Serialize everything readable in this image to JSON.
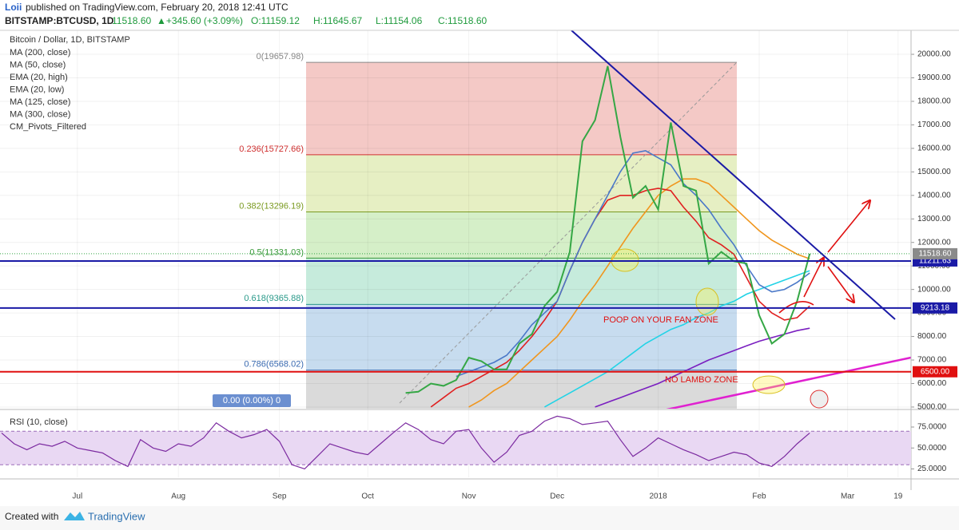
{
  "header": {
    "author": "Loii",
    "published": "published on TradingView.com, February 20, 2018 12:41 UTC",
    "symbol": "BITSTAMP:BTCUSD, 1D",
    "last": "11518.60",
    "change": "▲+345.60 (+3.09%)",
    "open": "O:11159.12",
    "high": "H:11645.67",
    "low": "L:11154.06",
    "close": "C:11518.60"
  },
  "footer": {
    "created": "Created with",
    "brand": "TradingView"
  },
  "chart_data": [
    {
      "type": "line",
      "title": "Bitcoin / Dollar, 1D, BITSTAMP",
      "indicators": [
        "MA (200, close)",
        "MA (50, close)",
        "EMA (20, high)",
        "EMA (20, low)",
        "MA (125, close)",
        "MA (300, close)",
        "CM_Pivots_Filtered"
      ],
      "ylim": [
        4930,
        21020
      ],
      "yticks": [
        {
          "value": 5000,
          "label": "5000.00"
        },
        {
          "value": 6000,
          "label": "6000.00"
        },
        {
          "value": 7000,
          "label": "7000.00"
        },
        {
          "value": 8000,
          "label": "8000.00"
        },
        {
          "value": 9000,
          "label": "9000.00"
        },
        {
          "value": 10000,
          "label": "10000.00"
        },
        {
          "value": 11000,
          "label": "11000.00"
        },
        {
          "value": 12000,
          "label": "12000.00"
        },
        {
          "value": 13000,
          "label": "13000.00"
        },
        {
          "value": 14000,
          "label": "14000.00"
        },
        {
          "value": 15000,
          "label": "15000.00"
        },
        {
          "value": 16000,
          "label": "16000.00"
        },
        {
          "value": 17000,
          "label": "17000.00"
        },
        {
          "value": 18000,
          "label": "18000.00"
        },
        {
          "value": 19000,
          "label": "19000.00"
        },
        {
          "value": 20000,
          "label": "20000.00"
        }
      ],
      "grid": true,
      "series": [
        {
          "color": "#35a745",
          "values": [
            null,
            null,
            null,
            null,
            null,
            null,
            null,
            null,
            null,
            null,
            null,
            null,
            null,
            null,
            null,
            null,
            null,
            null,
            null,
            null,
            null,
            null,
            null,
            null,
            null,
            null,
            null,
            null,
            null,
            null,
            null,
            null,
            5600,
            5650,
            6000,
            5900,
            6150,
            7100,
            6950,
            6600,
            6600,
            7700,
            8100,
            9300,
            9900,
            11600,
            16300,
            17200,
            19500,
            16500,
            13900,
            14400,
            13400,
            17100,
            14400,
            14200,
            11100,
            11600,
            11200,
            11100,
            8900,
            7700,
            8100,
            9500,
            11518.6,
            null,
            null,
            null,
            null,
            null,
            null,
            null,
            null
          ]
        },
        {
          "color": "#4a78c8",
          "values": [
            null,
            null,
            null,
            null,
            null,
            null,
            null,
            null,
            null,
            null,
            null,
            null,
            null,
            null,
            null,
            null,
            null,
            null,
            null,
            null,
            null,
            null,
            null,
            null,
            null,
            null,
            null,
            null,
            null,
            null,
            null,
            null,
            null,
            null,
            null,
            null,
            6300,
            6500,
            6700,
            6900,
            7200,
            7800,
            8500,
            9000,
            9500,
            10800,
            12000,
            13000,
            14000,
            15000,
            15800,
            15900,
            15600,
            15300,
            14500,
            14000,
            13400,
            12600,
            11900,
            11000,
            10200,
            9900,
            10000,
            10300,
            10700,
            null,
            null,
            null,
            null,
            null,
            null,
            null,
            null
          ]
        },
        {
          "color": "#e02020",
          "values": [
            null,
            null,
            null,
            null,
            null,
            null,
            null,
            null,
            null,
            null,
            null,
            null,
            null,
            null,
            null,
            null,
            null,
            null,
            null,
            null,
            null,
            null,
            null,
            null,
            null,
            null,
            null,
            null,
            null,
            null,
            null,
            null,
            null,
            null,
            5000,
            5400,
            5800,
            6000,
            6300,
            6600,
            6900,
            7400,
            8000,
            8700,
            9500,
            10800,
            12000,
            13000,
            13800,
            14000,
            14000,
            14200,
            14300,
            14200,
            13500,
            12900,
            12200,
            11900,
            11500,
            10500,
            9500,
            9000,
            8700,
            8800,
            9300,
            null,
            null,
            null,
            null,
            null,
            null,
            null,
            null
          ]
        },
        {
          "color": "#f0961e",
          "values": [
            null,
            null,
            null,
            null,
            null,
            null,
            null,
            null,
            null,
            null,
            null,
            null,
            null,
            null,
            null,
            null,
            null,
            null,
            null,
            null,
            null,
            null,
            null,
            null,
            null,
            null,
            null,
            null,
            null,
            null,
            null,
            null,
            null,
            null,
            null,
            null,
            null,
            5000,
            5300,
            5700,
            6000,
            6500,
            7000,
            7500,
            8000,
            8700,
            9500,
            10200,
            11000,
            11800,
            12600,
            13300,
            14000,
            14400,
            14700,
            14700,
            14500,
            14000,
            13500,
            13000,
            12500,
            12100,
            11800,
            11500,
            11300,
            null,
            null,
            null,
            null,
            null,
            null,
            null,
            null
          ]
        },
        {
          "color": "#22d3e6",
          "values": [
            null,
            null,
            null,
            null,
            null,
            null,
            null,
            null,
            null,
            null,
            null,
            null,
            null,
            null,
            null,
            null,
            null,
            null,
            null,
            null,
            null,
            null,
            null,
            null,
            null,
            null,
            null,
            null,
            null,
            null,
            null,
            null,
            null,
            null,
            null,
            null,
            null,
            null,
            null,
            null,
            null,
            null,
            null,
            5000,
            5300,
            5600,
            5900,
            6200,
            6500,
            6900,
            7300,
            7700,
            8000,
            8300,
            8500,
            8800,
            9000,
            9300,
            9500,
            9800,
            10000,
            10200,
            10400,
            10600,
            10800,
            null,
            null,
            null,
            null,
            null,
            null,
            null,
            null
          ]
        },
        {
          "color": "#7a1fc0",
          "values": [
            null,
            null,
            null,
            null,
            null,
            null,
            null,
            null,
            null,
            null,
            null,
            null,
            null,
            null,
            null,
            null,
            null,
            null,
            null,
            null,
            null,
            null,
            null,
            null,
            null,
            null,
            null,
            null,
            null,
            null,
            null,
            null,
            null,
            null,
            null,
            null,
            null,
            null,
            null,
            null,
            null,
            null,
            null,
            null,
            null,
            null,
            null,
            5000,
            5200,
            5400,
            5600,
            5800,
            6000,
            6250,
            6500,
            6750,
            7000,
            7200,
            7400,
            7600,
            7800,
            7950,
            8100,
            8250,
            8350,
            null,
            null,
            null,
            null,
            null,
            null,
            null,
            null
          ]
        }
      ],
      "fib_levels": [
        {
          "value": 19657.98,
          "label": "0(19657.98)",
          "color": "#f4c9c6",
          "text_color": "#888888"
        },
        {
          "value": 15727.66,
          "label": "0.236(15727.66)",
          "color": "#e6efc3",
          "text_color": "#d03030"
        },
        {
          "value": 13296.19,
          "label": "0.382(13296.19)",
          "color": "#d5efc8",
          "text_color": "#7a9a20"
        },
        {
          "value": 11331.03,
          "label": "0.5(11331.03)",
          "color": "#c6ebdc",
          "text_color": "#3a9a3a"
        },
        {
          "value": 9365.88,
          "label": "0.618(9365.88)",
          "color": "#c7dcef",
          "text_color": "#2a9a8a"
        },
        {
          "value": 6568.02,
          "label": "0.786(6568.02)",
          "color": "#dadada",
          "text_color": "#3a6ab0"
        }
      ],
      "levels": [
        {
          "value": 11211.63,
          "label": "11211.63",
          "color": "#1a1aa6"
        },
        {
          "value": 9213.18,
          "label": "9213.18",
          "color": "#1a1aa6"
        },
        {
          "value": 6500,
          "label": "6500.00",
          "color": "#e01010"
        }
      ],
      "last_price": {
        "value": 11518.6,
        "label": "11518.60",
        "color": "#8a8a8a"
      },
      "annotations": [
        "POOP ON YOUR FAN ZONE",
        "NO LAMBO ZONE"
      ],
      "marker": "0.00 (0.00%) 0"
    },
    {
      "type": "line",
      "title": "RSI (10, close)",
      "categories": [
        null,
        null,
        null,
        null,
        null,
        null,
        "Jul",
        null,
        null,
        null,
        null,
        null,
        null,
        null,
        "Aug",
        null,
        null,
        null,
        null,
        null,
        null,
        null,
        "Sep",
        null,
        null,
        null,
        null,
        null,
        null,
        "Oct",
        null,
        null,
        null,
        null,
        null,
        null,
        null,
        "Nov",
        null,
        null,
        null,
        null,
        null,
        null,
        "Dec",
        null,
        null,
        null,
        null,
        null,
        null,
        null,
        "2018",
        null,
        null,
        null,
        null,
        null,
        null,
        null,
        "Feb",
        null,
        null,
        null,
        null,
        null,
        null,
        "Mar",
        null,
        null,
        null,
        "19",
        null
      ],
      "ylim": [
        15,
        95
      ],
      "yticks": [
        {
          "value": 75,
          "label": "75.0000"
        },
        {
          "value": 50,
          "label": "50.0000"
        },
        {
          "value": 25,
          "label": "25.0000"
        }
      ],
      "band": [
        30,
        70
      ],
      "series": [
        {
          "color": "#7b2aa0",
          "values": [
            68,
            55,
            48,
            55,
            52,
            58,
            50,
            47,
            44,
            35,
            28,
            60,
            50,
            46,
            55,
            52,
            62,
            80,
            70,
            62,
            66,
            72,
            58,
            30,
            25,
            40,
            55,
            50,
            45,
            42,
            55,
            68,
            80,
            72,
            60,
            55,
            70,
            72,
            50,
            33,
            45,
            65,
            70,
            82,
            88,
            85,
            78,
            80,
            82,
            60,
            40,
            50,
            62,
            55,
            48,
            42,
            35,
            40,
            45,
            42,
            32,
            28,
            40,
            55,
            68,
            null,
            null,
            null,
            null,
            null,
            null,
            null,
            null
          ]
        }
      ]
    }
  ]
}
